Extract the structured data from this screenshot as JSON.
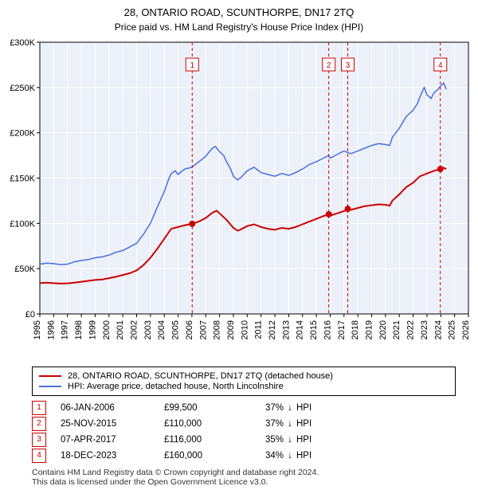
{
  "title_line1": "28, ONTARIO ROAD, SCUNTHORPE, DN17 2TQ",
  "title_line2": "Price paid vs. HM Land Registry's House Price Index (HPI)",
  "chart": {
    "plot_bg": "#ecf0f8",
    "page_bg": "#ffffff",
    "grid_color": "#ffffff",
    "axis_color": "#000000",
    "y": {
      "min": 0,
      "max": 300000,
      "step": 50000,
      "prefix": "£",
      "suffix": "K",
      "ticks": [
        0,
        50000,
        100000,
        150000,
        200000,
        250000,
        300000
      ],
      "tick_labels": [
        "£0",
        "£50K",
        "£100K",
        "£150K",
        "£200K",
        "£250K",
        "£300K"
      ]
    },
    "x": {
      "min": 1995,
      "max": 2026,
      "ticks_every": 1
    },
    "series": [
      {
        "id": "hpi",
        "label": "HPI: Average price, detached house, North Lincolnshire",
        "color": "#4a6fe3",
        "width": 1.5,
        "points": [
          [
            1995.0,
            55000
          ],
          [
            1995.5,
            56000
          ],
          [
            1996.0,
            55500
          ],
          [
            1996.5,
            54500
          ],
          [
            1997.0,
            55000
          ],
          [
            1997.5,
            57500
          ],
          [
            1998.0,
            59000
          ],
          [
            1998.5,
            60000
          ],
          [
            1999.0,
            62000
          ],
          [
            1999.5,
            63000
          ],
          [
            2000.0,
            65000
          ],
          [
            2000.5,
            68000
          ],
          [
            2001.0,
            70000
          ],
          [
            2001.5,
            74000
          ],
          [
            2002.0,
            78000
          ],
          [
            2002.5,
            88000
          ],
          [
            2003.0,
            100000
          ],
          [
            2003.5,
            118000
          ],
          [
            2004.0,
            135000
          ],
          [
            2004.3,
            148000
          ],
          [
            2004.5,
            155000
          ],
          [
            2004.8,
            158000
          ],
          [
            2005.0,
            154000
          ],
          [
            2005.3,
            158000
          ],
          [
            2005.5,
            160000
          ],
          [
            2006.0,
            162000
          ],
          [
            2006.5,
            168000
          ],
          [
            2007.0,
            174000
          ],
          [
            2007.3,
            180000
          ],
          [
            2007.5,
            183000
          ],
          [
            2007.7,
            185000
          ],
          [
            2008.0,
            179000
          ],
          [
            2008.3,
            175000
          ],
          [
            2008.5,
            168000
          ],
          [
            2008.8,
            160000
          ],
          [
            2009.0,
            152000
          ],
          [
            2009.3,
            148000
          ],
          [
            2009.5,
            150000
          ],
          [
            2010.0,
            158000
          ],
          [
            2010.5,
            162000
          ],
          [
            2011.0,
            156000
          ],
          [
            2011.5,
            154000
          ],
          [
            2012.0,
            152000
          ],
          [
            2012.5,
            155000
          ],
          [
            2013.0,
            153000
          ],
          [
            2013.5,
            156000
          ],
          [
            2014.0,
            160000
          ],
          [
            2014.5,
            165000
          ],
          [
            2015.0,
            168000
          ],
          [
            2015.5,
            172000
          ],
          [
            2015.9,
            175000
          ],
          [
            2016.0,
            172000
          ],
          [
            2016.5,
            176000
          ],
          [
            2017.0,
            180000
          ],
          [
            2017.3,
            178000
          ],
          [
            2017.5,
            177000
          ],
          [
            2018.0,
            180000
          ],
          [
            2018.5,
            183000
          ],
          [
            2019.0,
            186000
          ],
          [
            2019.5,
            188000
          ],
          [
            2020.0,
            187000
          ],
          [
            2020.3,
            186000
          ],
          [
            2020.5,
            195000
          ],
          [
            2021.0,
            205000
          ],
          [
            2021.5,
            218000
          ],
          [
            2022.0,
            225000
          ],
          [
            2022.3,
            232000
          ],
          [
            2022.5,
            240000
          ],
          [
            2022.8,
            250000
          ],
          [
            2023.0,
            242000
          ],
          [
            2023.3,
            238000
          ],
          [
            2023.5,
            244000
          ],
          [
            2023.8,
            248000
          ],
          [
            2024.0,
            252000
          ],
          [
            2024.2,
            255000
          ],
          [
            2024.4,
            248000
          ]
        ]
      },
      {
        "id": "subject",
        "label": "28, ONTARIO ROAD, SCUNTHORPE, DN17 2TQ (detached house)",
        "color": "#cc0000",
        "width": 2,
        "points": [
          [
            1995.0,
            34000
          ],
          [
            1995.5,
            34500
          ],
          [
            1996.0,
            34000
          ],
          [
            1996.5,
            33500
          ],
          [
            1997.0,
            33800
          ],
          [
            1997.5,
            34500
          ],
          [
            1998.0,
            35500
          ],
          [
            1998.5,
            36500
          ],
          [
            1999.0,
            37500
          ],
          [
            1999.5,
            38000
          ],
          [
            2000.0,
            39500
          ],
          [
            2000.5,
            41000
          ],
          [
            2001.0,
            43000
          ],
          [
            2001.5,
            45000
          ],
          [
            2002.0,
            48000
          ],
          [
            2002.5,
            54000
          ],
          [
            2003.0,
            62000
          ],
          [
            2003.5,
            72000
          ],
          [
            2004.0,
            83000
          ],
          [
            2004.5,
            94000
          ],
          [
            2005.0,
            96000
          ],
          [
            2005.5,
            98000
          ],
          [
            2006.0,
            99500
          ],
          [
            2006.5,
            102000
          ],
          [
            2007.0,
            106000
          ],
          [
            2007.5,
            112000
          ],
          [
            2007.8,
            114000
          ],
          [
            2008.0,
            111000
          ],
          [
            2008.5,
            104000
          ],
          [
            2009.0,
            95000
          ],
          [
            2009.3,
            92000
          ],
          [
            2009.5,
            93000
          ],
          [
            2010.0,
            97000
          ],
          [
            2010.5,
            99000
          ],
          [
            2011.0,
            96000
          ],
          [
            2011.5,
            94000
          ],
          [
            2012.0,
            93000
          ],
          [
            2012.5,
            95000
          ],
          [
            2013.0,
            94000
          ],
          [
            2013.5,
            96000
          ],
          [
            2014.0,
            99000
          ],
          [
            2014.5,
            102000
          ],
          [
            2015.0,
            105000
          ],
          [
            2015.5,
            108000
          ],
          [
            2015.9,
            110000
          ],
          [
            2016.0,
            108500
          ],
          [
            2016.5,
            111000
          ],
          [
            2017.0,
            113500
          ],
          [
            2017.3,
            116000
          ],
          [
            2017.5,
            115000
          ],
          [
            2018.0,
            117000
          ],
          [
            2018.5,
            119000
          ],
          [
            2019.0,
            120000
          ],
          [
            2019.5,
            121000
          ],
          [
            2020.0,
            120500
          ],
          [
            2020.3,
            119500
          ],
          [
            2020.5,
            125000
          ],
          [
            2021.0,
            132000
          ],
          [
            2021.5,
            140000
          ],
          [
            2022.0,
            145000
          ],
          [
            2022.5,
            152000
          ],
          [
            2023.0,
            155000
          ],
          [
            2023.5,
            158000
          ],
          [
            2023.97,
            160000
          ],
          [
            2024.1,
            162000
          ],
          [
            2024.4,
            160000
          ]
        ]
      }
    ],
    "transactions": [
      {
        "n": "1",
        "date_text": "06-JAN-2006",
        "year": 2006.02,
        "price": 99500,
        "price_text": "£99,500",
        "pct_text": "37%",
        "arrow": "↓",
        "ref": "HPI"
      },
      {
        "n": "2",
        "date_text": "25-NOV-2015",
        "year": 2015.9,
        "price": 110000,
        "price_text": "£110,000",
        "pct_text": "37%",
        "arrow": "↓",
        "ref": "HPI"
      },
      {
        "n": "3",
        "date_text": "07-APR-2017",
        "year": 2017.27,
        "price": 116000,
        "price_text": "£116,000",
        "pct_text": "35%",
        "arrow": "↓",
        "ref": "HPI"
      },
      {
        "n": "4",
        "date_text": "18-DEC-2023",
        "year": 2023.97,
        "price": 160000,
        "price_text": "£160,000",
        "pct_text": "34%",
        "arrow": "↓",
        "ref": "HPI"
      }
    ],
    "marker_color": "#cc0000",
    "marker_radius": 4,
    "vline_color": "#cc0000",
    "vline_dash": "4,3",
    "box_border": "#cc0000",
    "box_text_color": "#cc0000",
    "box_bg": "#ffffff",
    "box_size": 16,
    "tick_font_size": 11,
    "label_font_size": 11
  },
  "legend": {
    "items": [
      {
        "color": "#cc0000",
        "label_path": "chart.series.1.label"
      },
      {
        "color": "#4a6fe3",
        "label_path": "chart.series.0.label"
      }
    ]
  },
  "footer_line1": "Contains HM Land Registry data © Crown copyright and database right 2024.",
  "footer_line2": "This data is licensed under the Open Government Licence v3.0."
}
